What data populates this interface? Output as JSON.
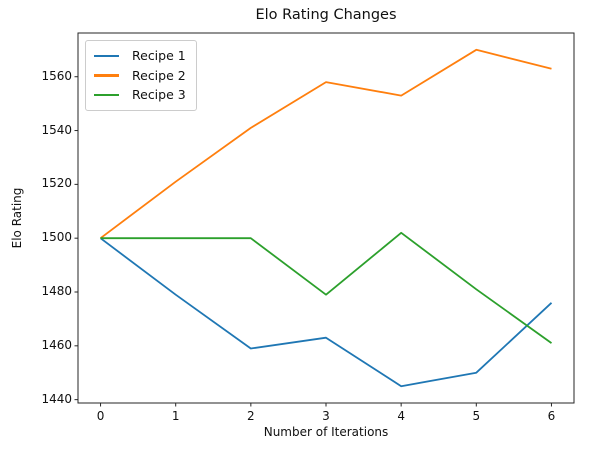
{
  "chart_data": {
    "type": "line",
    "title": "Elo Rating Changes",
    "xlabel": "Number of Iterations",
    "ylabel": "Elo Rating",
    "x": [
      0,
      1,
      2,
      3,
      4,
      5,
      6
    ],
    "series": [
      {
        "name": "Recipe 1",
        "color": "#1f77b4",
        "values": [
          1500,
          1479,
          1459,
          1463,
          1445,
          1450,
          1476
        ]
      },
      {
        "name": "Recipe 2",
        "color": "#ff7f0e",
        "values": [
          1500,
          1521,
          1541,
          1558,
          1553,
          1570,
          1563
        ]
      },
      {
        "name": "Recipe 3",
        "color": "#2ca02c",
        "values": [
          1500,
          1500,
          1500,
          1479,
          1502,
          1481,
          1461
        ]
      }
    ],
    "xticks": [
      0,
      1,
      2,
      3,
      4,
      5,
      6
    ],
    "yticks": [
      1440,
      1460,
      1480,
      1500,
      1520,
      1540,
      1560
    ],
    "xlim": [
      -0.3,
      6.3
    ],
    "ylim": [
      1438.75,
      1576.25
    ],
    "grid": false,
    "legend_position": "upper-left",
    "spine_color": "#262626",
    "line_width": 1.8
  }
}
